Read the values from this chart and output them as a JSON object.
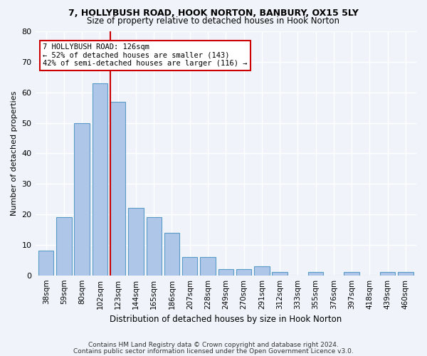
{
  "title1": "7, HOLLYBUSH ROAD, HOOK NORTON, BANBURY, OX15 5LY",
  "title2": "Size of property relative to detached houses in Hook Norton",
  "xlabel": "Distribution of detached houses by size in Hook Norton",
  "ylabel": "Number of detached properties",
  "bar_labels": [
    "38sqm",
    "59sqm",
    "80sqm",
    "102sqm",
    "123sqm",
    "144sqm",
    "165sqm",
    "186sqm",
    "207sqm",
    "228sqm",
    "249sqm",
    "270sqm",
    "291sqm",
    "312sqm",
    "333sqm",
    "355sqm",
    "376sqm",
    "397sqm",
    "418sqm",
    "439sqm",
    "460sqm"
  ],
  "bar_values": [
    8,
    19,
    50,
    63,
    57,
    22,
    19,
    14,
    6,
    6,
    2,
    2,
    3,
    1,
    0,
    1,
    0,
    1,
    0,
    1,
    1
  ],
  "bar_color": "#aec6e8",
  "bar_edge_color": "#5a9ac8",
  "vline_x": 3.575,
  "vline_color": "#cc0000",
  "annotation_text": "7 HOLLYBUSH ROAD: 126sqm\n← 52% of detached houses are smaller (143)\n42% of semi-detached houses are larger (116) →",
  "annotation_box_color": "white",
  "annotation_box_edge_color": "#cc0000",
  "ylim": [
    0,
    80
  ],
  "yticks": [
    0,
    10,
    20,
    30,
    40,
    50,
    60,
    70,
    80
  ],
  "footer1": "Contains HM Land Registry data © Crown copyright and database right 2024.",
  "footer2": "Contains public sector information licensed under the Open Government Licence v3.0.",
  "background_color": "#f0f4fa",
  "grid_color": "white"
}
